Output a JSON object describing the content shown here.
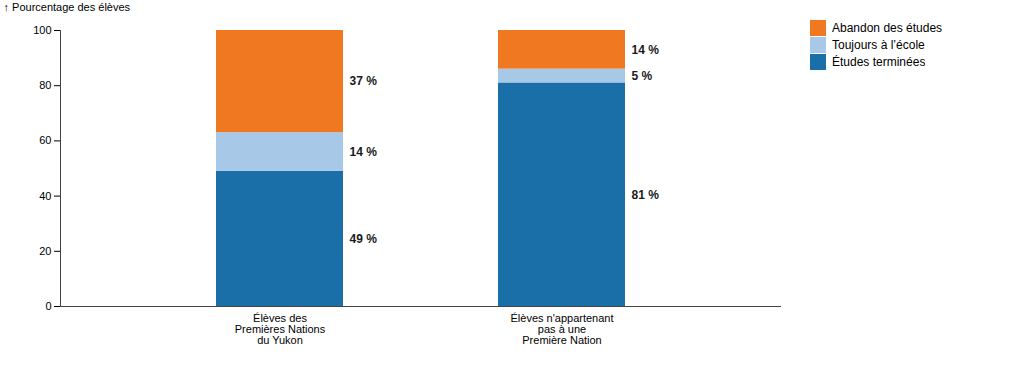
{
  "chart_data": {
    "type": "bar",
    "stacked": true,
    "data_labels": true,
    "grid": false,
    "legend": "upper right",
    "y_label": "Pourcentage des élèves",
    "categories": [
      "Élèves des\nPremières Nations\ndu Yukon",
      "Élèves n'appartenant\npas à une\nPremière Nation"
    ],
    "series": [
      {
        "name": "Études terminées",
        "color": "#1a6fa8",
        "values": [
          49,
          81
        ],
        "value_labels": [
          "49 %",
          "81 %"
        ]
      },
      {
        "name": "Toujours à l’école",
        "color": "#a8c8e8",
        "values": [
          14,
          5
        ],
        "value_labels": [
          "14 %",
          "5 %"
        ]
      },
      {
        "name": "Abandon des études",
        "color": "#f07820",
        "values": [
          37,
          14
        ],
        "value_labels": [
          "37 %",
          "14 %"
        ]
      }
    ],
    "ylim": [
      0,
      100
    ],
    "yticks": [
      0,
      20,
      40,
      60,
      80,
      100
    ]
  }
}
